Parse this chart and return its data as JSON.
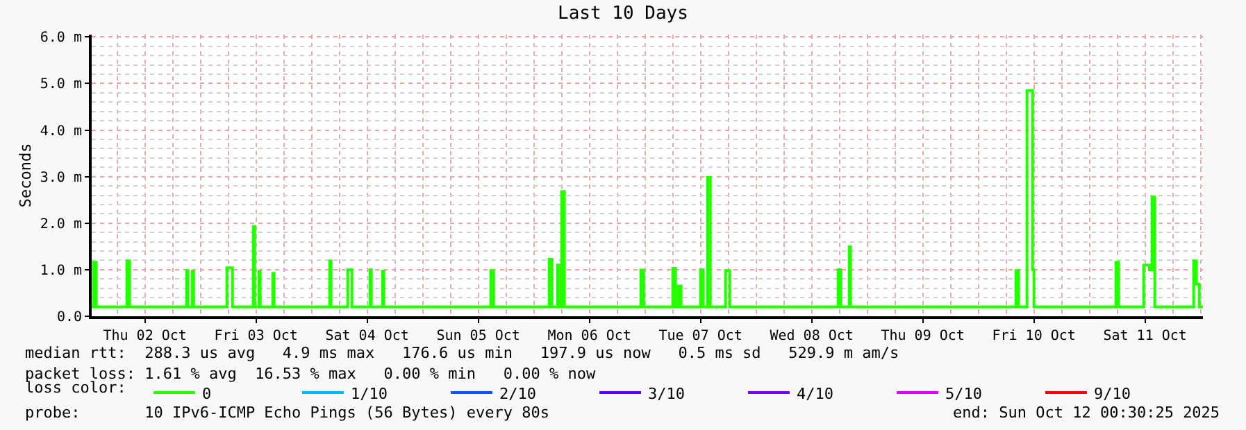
{
  "chart_data": {
    "type": "step",
    "title": "Last 10 Days",
    "ylabel": "Seconds",
    "legend_title": "loss color:",
    "annotations": [
      "median rtt:  288.3 us avg   4.9 ms max   176.6 us min   197.9 us now   0.5 ms sd   529.9 m am/s",
      "packet loss: 1.61 % avg  16.53 % max   0.00 % min   0.00 % now",
      "probe:       10 IPv6-ICMP Echo Pings (56 Bytes) every 80s",
      "end: Sun Oct 12 00:30:25 2025"
    ],
    "x": [
      "2025-10-02T00:30",
      "2025-10-02T00:54",
      "2025-10-02T01:30",
      "2025-10-02T08:06",
      "2025-10-02T08:42",
      "2025-10-02T21:00",
      "2025-10-02T21:18",
      "2025-10-02T22:12",
      "2025-10-02T22:30",
      "2025-10-03T05:42",
      "2025-10-03T06:54",
      "2025-10-03T11:24",
      "2025-10-03T11:42",
      "2025-10-03T12:36",
      "2025-10-03T12:54",
      "2025-10-03T15:36",
      "2025-10-03T15:54",
      "2025-10-04T03:54",
      "2025-10-04T04:12",
      "2025-10-04T07:48",
      "2025-10-04T08:42",
      "2025-10-04T12:36",
      "2025-10-04T12:54",
      "2025-10-04T15:18",
      "2025-10-04T15:36",
      "2025-10-05T14:42",
      "2025-10-05T15:18",
      "2025-10-06T03:18",
      "2025-10-06T03:54",
      "2025-10-06T05:06",
      "2025-10-06T05:24",
      "2025-10-06T06:00",
      "2025-10-06T06:36",
      "2025-10-06T23:06",
      "2025-10-06T23:42",
      "2025-10-07T06:00",
      "2025-10-07T06:36",
      "2025-10-07T07:12",
      "2025-10-07T07:48",
      "2025-10-07T12:00",
      "2025-10-07T12:36",
      "2025-10-07T13:30",
      "2025-10-07T14:06",
      "2025-10-07T17:24",
      "2025-10-07T18:18",
      "2025-10-08T17:42",
      "2025-10-08T18:18",
      "2025-10-08T20:06",
      "2025-10-08T20:24",
      "2025-10-10T08:06",
      "2025-10-10T08:42",
      "2025-10-10T10:30",
      "2025-10-10T11:42",
      "2025-10-10T12:00",
      "2025-10-11T05:42",
      "2025-10-11T06:18",
      "2025-10-11T11:42",
      "2025-10-11T12:54",
      "2025-10-11T13:30",
      "2025-10-11T14:06",
      "2025-10-11T22:30",
      "2025-10-11T23:06",
      "2025-10-11T23:42",
      "2025-10-12T00:30"
    ],
    "series": [
      {
        "name": "0",
        "color": "#26ff00",
        "values": [
          0.2,
          1.16,
          0.2,
          1.19,
          0.2,
          0.98,
          0.2,
          0.96,
          0.2,
          1.04,
          0.2,
          1.93,
          0.2,
          0.96,
          0.2,
          0.92,
          0.2,
          1.19,
          0.2,
          1.0,
          0.2,
          1.0,
          0.2,
          0.97,
          0.2,
          0.98,
          0.2,
          1.22,
          0.2,
          1.1,
          0.2,
          2.68,
          0.2,
          0.99,
          0.2,
          1.03,
          0.2,
          0.65,
          0.2,
          1.0,
          0.2,
          2.98,
          0.2,
          0.98,
          0.2,
          1.0,
          0.2,
          1.49,
          0.2,
          0.98,
          0.2,
          4.85,
          1.0,
          0.2,
          1.16,
          0.2,
          1.1,
          1.0,
          2.56,
          0.2,
          1.19,
          0.69,
          0.2,
          0.2
        ]
      },
      {
        "name": "1/10",
        "color": "#00b8ff",
        "values": [
          null,
          null,
          null,
          null,
          null,
          null,
          null,
          null,
          null,
          null,
          null,
          null,
          null,
          null,
          null,
          null,
          null,
          null,
          null,
          null,
          null,
          null,
          null,
          null,
          null,
          null,
          null,
          null,
          null,
          null,
          null,
          null,
          null,
          null,
          null,
          null,
          null,
          null,
          null,
          null,
          null,
          null,
          null,
          null,
          null,
          null,
          null,
          null,
          null,
          null,
          null,
          null,
          null,
          null,
          null,
          null,
          null,
          null,
          null,
          null,
          null,
          null,
          null,
          null
        ]
      },
      {
        "name": "2/10",
        "color": "#0059ff",
        "values": [
          null,
          null,
          null,
          null,
          null,
          null,
          null,
          null,
          null,
          null,
          null,
          null,
          null,
          null,
          null,
          null,
          null,
          null,
          null,
          null,
          null,
          null,
          null,
          null,
          null,
          null,
          null,
          null,
          null,
          null,
          null,
          null,
          null,
          null,
          null,
          null,
          null,
          null,
          null,
          null,
          null,
          null,
          null,
          null,
          null,
          null,
          null,
          null,
          null,
          null,
          null,
          null,
          null,
          null,
          null,
          null,
          null,
          null,
          null,
          null,
          null,
          null,
          null,
          null
        ]
      },
      {
        "name": "3/10",
        "color": "#5e00ff",
        "values": [
          null,
          null,
          null,
          null,
          null,
          null,
          null,
          null,
          null,
          null,
          null,
          null,
          null,
          null,
          null,
          null,
          null,
          null,
          null,
          null,
          null,
          null,
          null,
          null,
          null,
          null,
          null,
          null,
          null,
          null,
          null,
          null,
          null,
          null,
          null,
          null,
          null,
          null,
          null,
          null,
          null,
          null,
          null,
          null,
          null,
          null,
          null,
          null,
          null,
          null,
          null,
          null,
          null,
          null,
          null,
          null,
          null,
          null,
          null,
          null,
          null,
          null,
          null,
          null
        ]
      },
      {
        "name": "4/10",
        "color": "#7e00ff",
        "values": [
          null,
          null,
          null,
          null,
          null,
          null,
          null,
          null,
          null,
          null,
          null,
          null,
          null,
          null,
          null,
          null,
          null,
          null,
          null,
          null,
          null,
          null,
          null,
          null,
          null,
          null,
          null,
          null,
          null,
          null,
          null,
          null,
          null,
          null,
          null,
          null,
          null,
          null,
          null,
          null,
          null,
          null,
          null,
          null,
          null,
          null,
          null,
          null,
          null,
          null,
          null,
          null,
          null,
          null,
          null,
          null,
          null,
          null,
          null,
          null,
          null,
          null,
          null,
          null
        ]
      },
      {
        "name": "5/10",
        "color": "#dd00ff",
        "values": [
          null,
          null,
          null,
          null,
          null,
          null,
          null,
          null,
          null,
          null,
          null,
          null,
          null,
          null,
          null,
          null,
          null,
          null,
          null,
          null,
          null,
          null,
          null,
          null,
          null,
          null,
          null,
          null,
          null,
          null,
          null,
          null,
          null,
          null,
          null,
          null,
          null,
          null,
          null,
          null,
          null,
          null,
          null,
          null,
          null,
          null,
          null,
          null,
          null,
          null,
          null,
          null,
          null,
          null,
          null,
          null,
          null,
          null,
          null,
          null,
          null,
          null,
          null,
          null
        ]
      },
      {
        "name": "9/10",
        "color": "#ff0000",
        "values": [
          null,
          null,
          null,
          null,
          null,
          null,
          null,
          null,
          null,
          null,
          null,
          null,
          null,
          null,
          null,
          null,
          null,
          null,
          null,
          null,
          null,
          null,
          null,
          null,
          null,
          null,
          null,
          null,
          null,
          null,
          null,
          null,
          null,
          null,
          null,
          null,
          null,
          null,
          null,
          null,
          null,
          null,
          null,
          null,
          null,
          null,
          null,
          null,
          null,
          null,
          null,
          null,
          null,
          null,
          null,
          null,
          null,
          null,
          null,
          null,
          null,
          null,
          null,
          null
        ]
      }
    ],
    "xlim": [
      "2025-10-02T00:30",
      "2025-10-12T00:30"
    ],
    "xticks": [
      {
        "value": "2025-10-02T12:00",
        "label": "Thu 02 Oct"
      },
      {
        "value": "2025-10-03T12:00",
        "label": "Fri 03 Oct"
      },
      {
        "value": "2025-10-04T12:00",
        "label": "Sat 04 Oct"
      },
      {
        "value": "2025-10-05T12:00",
        "label": "Sun 05 Oct"
      },
      {
        "value": "2025-10-06T12:00",
        "label": "Mon 06 Oct"
      },
      {
        "value": "2025-10-07T12:00",
        "label": "Tue 07 Oct"
      },
      {
        "value": "2025-10-08T12:00",
        "label": "Wed 08 Oct"
      },
      {
        "value": "2025-10-09T12:00",
        "label": "Thu 09 Oct"
      },
      {
        "value": "2025-10-10T12:00",
        "label": "Fri 10 Oct"
      },
      {
        "value": "2025-10-11T12:00",
        "label": "Sat 11 Oct"
      }
    ],
    "ylim": [
      0,
      6.05
    ],
    "yticks": [
      {
        "value": 0,
        "label": "0.0"
      },
      {
        "value": 1,
        "label": "1.0 m"
      },
      {
        "value": 2,
        "label": "2.0 m"
      },
      {
        "value": 3,
        "label": "3.0 m"
      },
      {
        "value": 4,
        "label": "4.0 m"
      },
      {
        "value": 5,
        "label": "5.0 m"
      },
      {
        "value": 6,
        "label": "6.0 m"
      }
    ],
    "grid": true,
    "legend": "bottom",
    "line_style": "solid",
    "marker": "none"
  }
}
